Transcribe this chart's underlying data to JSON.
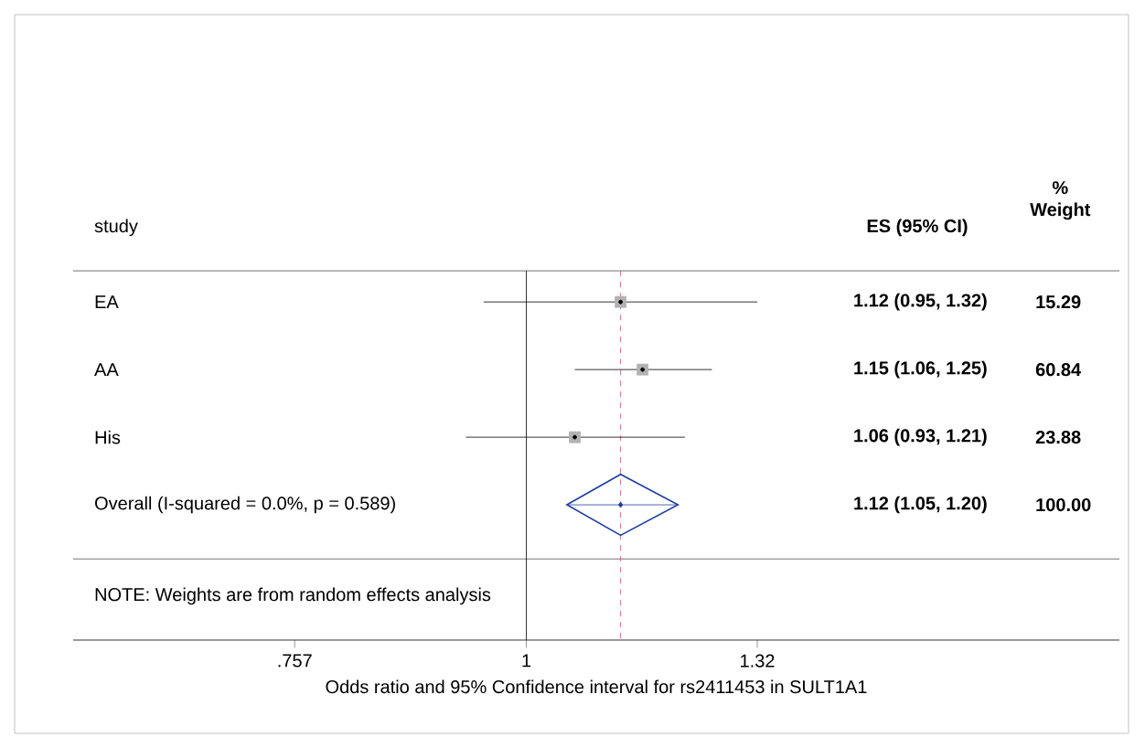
{
  "chart_data": {
    "type": "scatter",
    "orientation": "horizontal",
    "log": "x",
    "categories": [
      "EA",
      "AA",
      "His",
      "Overall  (I-squared = 0.0%, p = 0.589)"
    ],
    "series": [
      {
        "type": "scatter",
        "marker": "square",
        "color": "#000000",
        "values": [
          1.12,
          1.15,
          1.06,
          null
        ],
        "errors": [
          [
            0.95,
            1.32
          ],
          [
            1.06,
            1.25
          ],
          [
            0.93,
            1.21
          ],
          null
        ]
      },
      {
        "type": "scatter",
        "marker": "diamond",
        "color": "#1f3f9f",
        "values": [
          null,
          null,
          null,
          1.12
        ],
        "errors": [
          null,
          null,
          null,
          [
            1.05,
            1.2
          ]
        ]
      }
    ],
    "xlabel": "Odds ratio and 95% Confidence interval for rs2411453 in SULT1A1",
    "annotations": [
      "study",
      "ES (95% CI)",
      "% Weight",
      "1.12 (0.95, 1.32)",
      "15.29",
      "1.15 (1.06, 1.25)",
      "60.84",
      "1.06 (0.93, 1.21)",
      "23.88",
      "1.12 (1.05, 1.20)",
      "100.00",
      "NOTE: Weights are from random effects analysis"
    ],
    "xlim": [
      0.58,
      2.04
    ],
    "xticks": [
      {
        "value": 0.757,
        "label": ".757"
      },
      1,
      1.32
    ],
    "ref_lines": [
      {
        "axis": "x",
        "value": 1,
        "color": "#000000",
        "line_style": "solid"
      },
      {
        "axis": "x",
        "value": 1.12,
        "color": "#c0506e",
        "line_style": "dashed"
      }
    ]
  }
}
